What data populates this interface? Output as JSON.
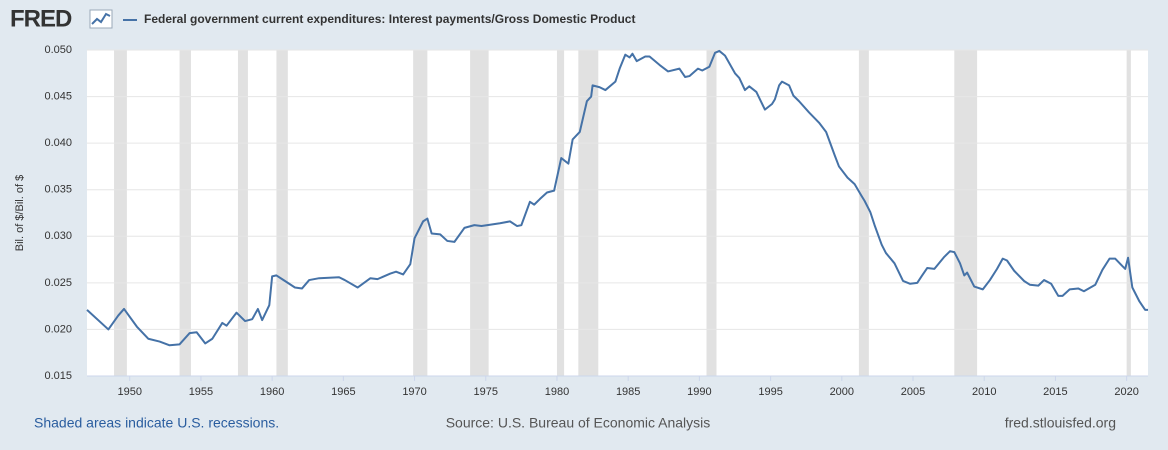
{
  "chart_data": {
    "type": "line",
    "logo": "FRED",
    "y_label": "Bil. of $/Bil. of $",
    "footer_left": "Shaded areas indicate U.S. recessions.",
    "footer_center": "Source: U.S. Bureau of Economic Analysis",
    "footer_right": "fred.stlouisfed.org",
    "xlim": [
      1947.0,
      2021.5
    ],
    "ylim": [
      0.015,
      0.05
    ],
    "xticks": [
      1950,
      1955,
      1960,
      1965,
      1970,
      1975,
      1980,
      1985,
      1990,
      1995,
      2000,
      2005,
      2010,
      2015,
      2020
    ],
    "yticks": [
      {
        "value": 0.015,
        "label": "0.015"
      },
      {
        "value": 0.02,
        "label": "0.020"
      },
      {
        "value": 0.025,
        "label": "0.025"
      },
      {
        "value": 0.03,
        "label": "0.030"
      },
      {
        "value": 0.035,
        "label": "0.035"
      },
      {
        "value": 0.04,
        "label": "0.040"
      },
      {
        "value": 0.045,
        "label": "0.045"
      },
      {
        "value": 0.05,
        "label": "0.050"
      }
    ],
    "grid": true,
    "recessions": [
      [
        1948.9,
        1949.8
      ],
      [
        1953.5,
        1954.3
      ],
      [
        1957.6,
        1958.3
      ],
      [
        1960.3,
        1961.1
      ],
      [
        1969.9,
        1970.9
      ],
      [
        1973.9,
        1975.2
      ],
      [
        1980.0,
        1980.5
      ],
      [
        1981.5,
        1982.9
      ],
      [
        1990.5,
        1991.2
      ],
      [
        2001.2,
        2001.9
      ],
      [
        2007.9,
        2009.5
      ],
      [
        2020.0,
        2020.3
      ]
    ],
    "recession_color": "#e1e1e1",
    "x": [
      1947.0,
      1948.5,
      1949.2,
      1949.6,
      1950.5,
      1951.3,
      1952.1,
      1952.8,
      1953.5,
      1954.2,
      1954.7,
      1955.3,
      1955.8,
      1956.5,
      1956.8,
      1957.5,
      1958.1,
      1958.6,
      1959.0,
      1959.3,
      1959.8,
      1960.0,
      1960.3,
      1960.7,
      1961.6,
      1962.1,
      1962.6,
      1963.3,
      1964.7,
      1965.1,
      1966.0,
      1966.9,
      1967.4,
      1968.3,
      1968.7,
      1969.2,
      1969.7,
      1970.0,
      1970.6,
      1970.9,
      1971.2,
      1971.8,
      1972.3,
      1972.8,
      1973.5,
      1974.2,
      1974.7,
      1976.0,
      1976.7,
      1977.2,
      1977.5,
      1978.1,
      1978.4,
      1978.8,
      1979.3,
      1979.8,
      1980.3,
      1980.8,
      1981.1,
      1981.6,
      1982.1,
      1982.4,
      1982.5,
      1983.0,
      1983.4,
      1984.1,
      1984.4,
      1984.8,
      1985.1,
      1985.3,
      1985.6,
      1986.2,
      1986.5,
      1987.2,
      1987.8,
      1988.6,
      1989.0,
      1989.3,
      1989.9,
      1990.2,
      1990.7,
      1991.1,
      1991.4,
      1991.8,
      1992.5,
      1992.8,
      1993.2,
      1993.5,
      1994.0,
      1994.6,
      1995.1,
      1995.3,
      1995.6,
      1995.8,
      1996.3,
      1996.6,
      1997.0,
      1997.7,
      1998.4,
      1998.9,
      1999.5,
      1999.8,
      2000.4,
      2000.9,
      2001.4,
      2001.6,
      2002.0,
      2002.3,
      2002.8,
      2003.1,
      2003.7,
      2004.3,
      2004.8,
      2005.3,
      2005.6,
      2006.0,
      2006.5,
      2007.2,
      2007.6,
      2007.9,
      2008.3,
      2008.6,
      2008.8,
      2009.3,
      2009.9,
      2010.4,
      2010.9,
      2011.3,
      2011.6,
      2012.1,
      2012.8,
      2013.2,
      2013.8,
      2014.2,
      2014.7,
      2015.2,
      2015.5,
      2016.0,
      2016.6,
      2017.0,
      2017.8,
      2018.3,
      2018.8,
      2019.2,
      2019.7,
      2019.9,
      2020.1,
      2020.4,
      2020.9,
      2021.3,
      2021.5
    ],
    "series": [
      {
        "name": "Federal government current expenditures: Interest payments/Gross Domestic Product",
        "color": "#4572a7",
        "values": [
          0.0221,
          0.02,
          0.0215,
          0.0222,
          0.0203,
          0.019,
          0.0187,
          0.0183,
          0.0184,
          0.0196,
          0.0197,
          0.0185,
          0.019,
          0.0207,
          0.0204,
          0.0218,
          0.0209,
          0.0211,
          0.0222,
          0.021,
          0.0226,
          0.0257,
          0.0258,
          0.0254,
          0.0245,
          0.0244,
          0.0253,
          0.0255,
          0.0256,
          0.0253,
          0.0245,
          0.0255,
          0.0254,
          0.026,
          0.0262,
          0.0259,
          0.027,
          0.0298,
          0.0316,
          0.0319,
          0.0303,
          0.0302,
          0.0295,
          0.0294,
          0.0309,
          0.0312,
          0.0311,
          0.0314,
          0.0316,
          0.0311,
          0.0312,
          0.0337,
          0.0334,
          0.034,
          0.0347,
          0.0349,
          0.0384,
          0.0378,
          0.0404,
          0.0412,
          0.0445,
          0.045,
          0.0462,
          0.046,
          0.0457,
          0.0466,
          0.048,
          0.0495,
          0.0492,
          0.0496,
          0.0488,
          0.0493,
          0.0493,
          0.0484,
          0.0477,
          0.048,
          0.0471,
          0.0472,
          0.048,
          0.0478,
          0.0482,
          0.0497,
          0.0499,
          0.0494,
          0.0475,
          0.047,
          0.0457,
          0.0461,
          0.0455,
          0.0436,
          0.0442,
          0.0447,
          0.0462,
          0.0466,
          0.0462,
          0.0451,
          0.0445,
          0.0433,
          0.0422,
          0.0412,
          0.0387,
          0.0375,
          0.0363,
          0.0356,
          0.0343,
          0.0338,
          0.0326,
          0.0312,
          0.0291,
          0.0282,
          0.0271,
          0.0252,
          0.0249,
          0.025,
          0.0257,
          0.0266,
          0.0265,
          0.0278,
          0.0284,
          0.0283,
          0.0271,
          0.0258,
          0.0261,
          0.0246,
          0.0243,
          0.0253,
          0.0265,
          0.0276,
          0.0274,
          0.0263,
          0.0252,
          0.0248,
          0.0247,
          0.0253,
          0.0249,
          0.0236,
          0.0236,
          0.0243,
          0.0244,
          0.0241,
          0.0248,
          0.0264,
          0.0276,
          0.0276,
          0.0268,
          0.0265,
          0.0277,
          0.0245,
          0.023,
          0.0221,
          0.0221
        ]
      }
    ]
  }
}
